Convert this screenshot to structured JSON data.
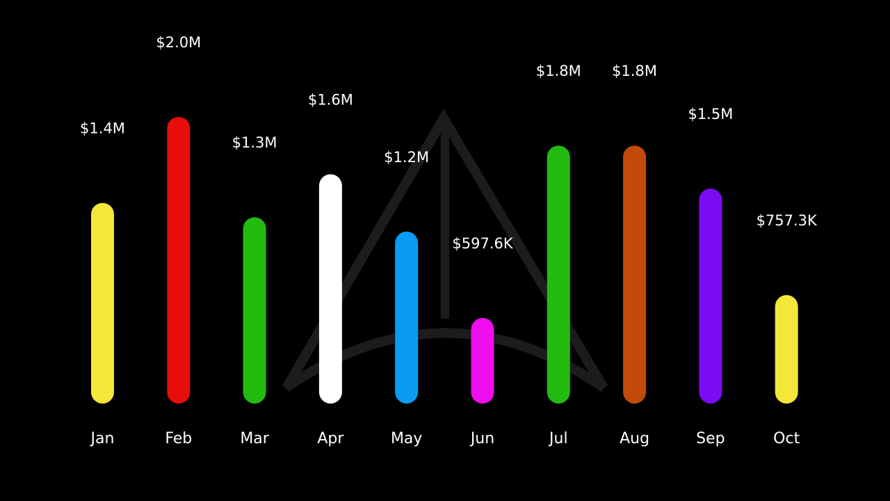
{
  "chart_data": {
    "type": "bar",
    "categories": [
      "Jan",
      "Feb",
      "Mar",
      "Apr",
      "May",
      "Jun",
      "Jul",
      "Aug",
      "Sep",
      "Oct"
    ],
    "values": [
      1400000,
      2000000,
      1300000,
      1600000,
      1200000,
      597600,
      1800000,
      1800000,
      1500000,
      757300
    ],
    "data_labels": [
      "$1.4M",
      "$2.0M",
      "$1.3M",
      "$1.6M",
      "$1.2M",
      "$597.6K",
      "$1.8M",
      "$1.8M",
      "$1.5M",
      "$757.3K"
    ],
    "colors": [
      "#f5e63a",
      "#e80c0c",
      "#22bb10",
      "#ffffff",
      "#0a9cf5",
      "#ee0eee",
      "#22bb10",
      "#c24b0a",
      "#7a0cf5",
      "#f5e63a"
    ],
    "ylim": [
      0,
      2000000
    ],
    "grid": false,
    "legend": "none",
    "background": "#000000",
    "watermark": "logo-watermark-icon"
  }
}
